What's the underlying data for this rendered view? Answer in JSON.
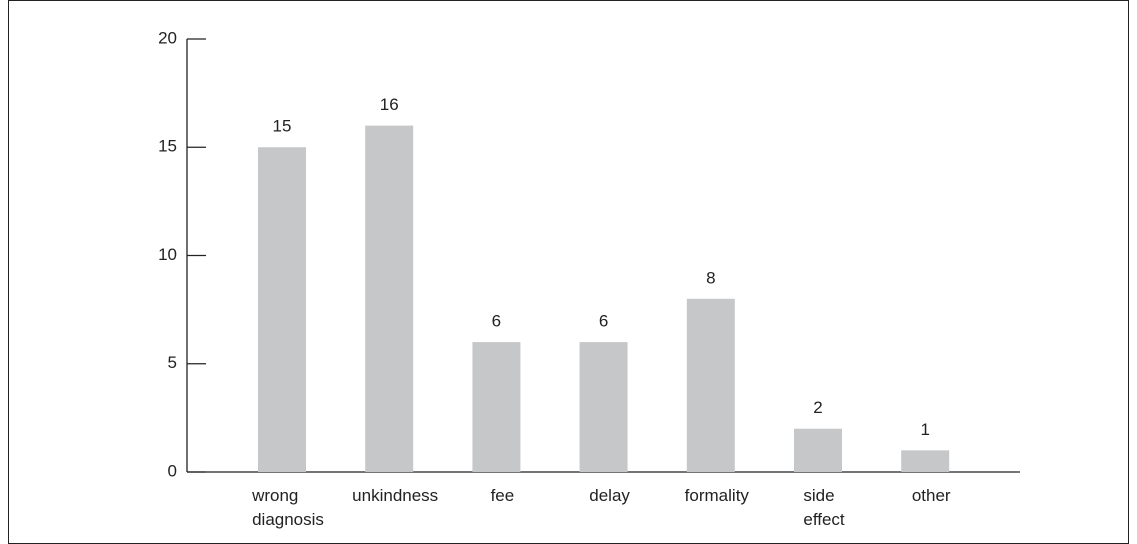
{
  "chart_data": {
    "type": "bar",
    "categories": [
      "wrong diagnosis",
      "unkindness",
      "fee",
      "delay",
      "formality",
      "side effect",
      "other"
    ],
    "values": [
      15,
      16,
      6,
      6,
      8,
      2,
      1
    ],
    "color": "#c6c7c8",
    "ylim": [
      0,
      20
    ],
    "yticks": [
      0,
      5,
      10,
      15,
      20
    ]
  }
}
